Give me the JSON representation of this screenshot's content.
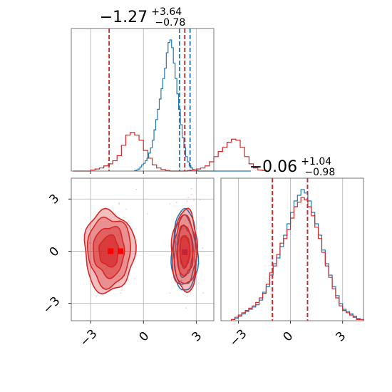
{
  "chart_data": {
    "type": "corner",
    "colors": {
      "posterior_blue": "#1f77b4",
      "posterior_red": "#d62728"
    },
    "grid": true,
    "panels": [
      {
        "name": "marginal-param-1",
        "type": "histogram",
        "title": {
          "median": "−1.27",
          "plus": "+3.64",
          "minus": "−0.78"
        },
        "xlim": [
          -4.1,
          4.0
        ],
        "gridlines_x": [
          -3,
          0,
          3
        ],
        "series": [
          {
            "color": "#1f77b4",
            "quantile_lines": [
              2.05,
              2.35,
              2.65
            ],
            "hist": {
              "start": -0.5,
              "width": 0.1,
              "counts": [
                1,
                2,
                4,
                8,
                12,
                15,
                20,
                25,
                35,
                45,
                60,
                80,
                100,
                120,
                140,
                160,
                180,
                200,
                230,
                250,
                255,
                240,
                210,
                180,
                150,
                120,
                90,
                65,
                45,
                28,
                18,
                10,
                6,
                3,
                2,
                1,
                0,
                0,
                0,
                0,
                0,
                0,
                0,
                0,
                0,
                0,
                0,
                0,
                0,
                0,
                0,
                0,
                0,
                0,
                0,
                0,
                0,
                0,
                0,
                0,
                0,
                0,
                0,
                0,
                0,
                0
              ]
            }
          },
          {
            "color": "#d62728",
            "quantile_lines": [
              -1.95,
              2.35
            ],
            "hist": {
              "start": -4.0,
              "width": 0.25,
              "counts": [
                0,
                0,
                0,
                0,
                2,
                4,
                6,
                10,
                14,
                20,
                30,
                50,
                70,
                75,
                70,
                60,
                40,
                25,
                12,
                6,
                3,
                1,
                0,
                0,
                0,
                0,
                1,
                2,
                4,
                6,
                10,
                18,
                28,
                38,
                46,
                56,
                62,
                60,
                46,
                28,
                14,
                6,
                2,
                1
              ]
            }
          }
        ]
      },
      {
        "name": "marginal-param-2",
        "type": "histogram",
        "title": {
          "median": "−0.06",
          "plus": "+1.04",
          "minus": "−0.98"
        },
        "xlim": [
          -4.0,
          4.2
        ],
        "gridlines_x": [
          -3,
          0,
          3
        ],
        "series": [
          {
            "color": "#1f77b4",
            "quantile_lines": [
              -1.04,
              0.98
            ],
            "hist": {
              "start": -3.4,
              "width": 0.2,
              "counts": [
                1,
                2,
                4,
                6,
                8,
                10,
                12,
                14,
                18,
                25,
                30,
                40,
                50,
                55,
                65,
                75,
                85,
                95,
                105,
                110,
                115,
                112,
                105,
                95,
                85,
                75,
                62,
                50,
                40,
                30,
                22,
                15,
                10,
                8,
                6,
                4,
                2,
                1
              ]
            }
          },
          {
            "color": "#d62728",
            "quantile_lines": [
              -1.04,
              0.98
            ],
            "hist": {
              "start": -3.4,
              "width": 0.2,
              "counts": [
                1,
                3,
                5,
                7,
                9,
                11,
                13,
                16,
                20,
                24,
                32,
                42,
                48,
                58,
                68,
                72,
                80,
                90,
                100,
                104,
                108,
                106,
                100,
                92,
                82,
                72,
                60,
                48,
                38,
                28,
                20,
                13,
                9,
                7,
                5,
                3,
                1,
                1
              ]
            }
          }
        ]
      },
      {
        "name": "joint-param-1-param-2",
        "type": "contour",
        "xlim": [
          -4.1,
          4.0
        ],
        "ylim": [
          -4.0,
          4.2
        ],
        "xticks": [
          "−3",
          "0",
          "3"
        ],
        "xtick_values": [
          -3,
          0,
          3
        ],
        "yticks": [
          "−3",
          "0",
          "3"
        ],
        "ytick_values": [
          -3,
          0,
          3
        ],
        "series": [
          {
            "color": "#1f77b4",
            "modes": [
              {
                "center": [
                  2.35,
                  0.0
                ],
                "sx": 0.28,
                "sy": 1.0
              }
            ],
            "peak_marker": [
              2.35,
              -0.06
            ]
          },
          {
            "color": "#d62728",
            "modes": [
              {
                "center": [
                  -1.95,
                  0.0
                ],
                "sx": 0.55,
                "sy": 1.0
              },
              {
                "center": [
                  2.35,
                  0.0
                ],
                "sx": 0.28,
                "sy": 1.0
              }
            ],
            "peak_marker": [
              -1.3,
              0.0
            ]
          }
        ]
      }
    ]
  }
}
